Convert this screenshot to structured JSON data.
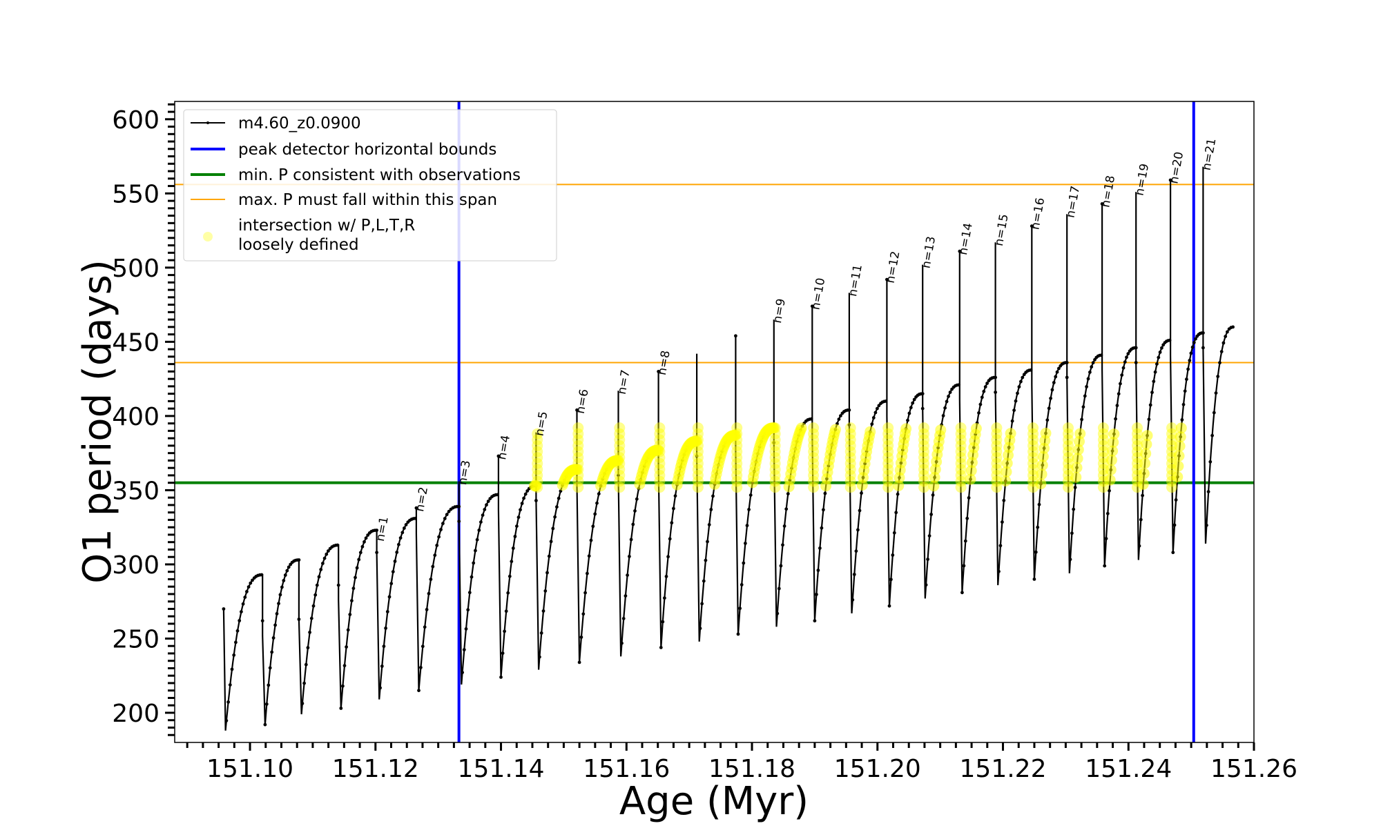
{
  "chart_data": {
    "type": "line",
    "title": "",
    "xlabel": "Age (Myr)",
    "ylabel": "O1 period (days)",
    "xlim": [
      151.088,
      151.26
    ],
    "ylim": [
      180,
      612
    ],
    "x_ticks": [
      151.1,
      151.12,
      151.14,
      151.16,
      151.18,
      151.2,
      151.22,
      151.24,
      151.26
    ],
    "x_tick_labels": [
      "151.10",
      "151.12",
      "151.14",
      "151.16",
      "151.18",
      "151.20",
      "151.22",
      "151.24",
      "151.26"
    ],
    "y_ticks": [
      200,
      250,
      300,
      350,
      400,
      450,
      500,
      550,
      600
    ],
    "y_tick_labels": [
      "200",
      "250",
      "300",
      "350",
      "400",
      "450",
      "500",
      "550",
      "600"
    ],
    "grid": false,
    "legend": {
      "placement": "upper-left",
      "entries": [
        {
          "key": "track",
          "label": "m4.60_z0.0900",
          "color": "#000000"
        },
        {
          "key": "bounds",
          "label": "peak detector horizontal bounds",
          "color": "#0000ff"
        },
        {
          "key": "minp",
          "label": "min. P consistent with observations",
          "color": "#008000"
        },
        {
          "key": "maxp",
          "label": "max. P must fall within this span",
          "color": "#ffa500"
        },
        {
          "key": "intersect",
          "label_line1": "intersection w/ P,L,T,R",
          "label_line2": "loosely defined",
          "color": "#ffff00"
        }
      ]
    },
    "reference_lines": {
      "peak_detector_bounds_x": [
        151.1333,
        151.2504
      ],
      "min_p_y": 355,
      "max_p_span_y": [
        436,
        556
      ]
    },
    "track": {
      "name": "m4.60_z0.0900",
      "start_age": 151.0958,
      "start_period": 270,
      "cycles": [
        {
          "age": 151.102,
          "trough": 188,
          "peak": 293,
          "spike": 262
        },
        {
          "age": 151.1078,
          "trough": 192,
          "peak": 303,
          "spike": 273
        },
        {
          "age": 151.1141,
          "trough": 199,
          "peak": 313,
          "spike": 286
        },
        {
          "age": 151.1202,
          "trough": 203,
          "peak": 323,
          "spike": 318
        },
        {
          "age": 151.1265,
          "trough": 209,
          "peak": 331,
          "spike": 338
        },
        {
          "age": 151.1333,
          "trough": 215,
          "peak": 339,
          "spike": 356
        },
        {
          "age": 151.1396,
          "trough": 219,
          "peak": 347,
          "spike": 373
        },
        {
          "age": 151.1456,
          "trough": 224,
          "peak": 353,
          "spike": 389
        },
        {
          "age": 151.1521,
          "trough": 229,
          "peak": 364,
          "spike": 404
        },
        {
          "age": 151.1587,
          "trough": 234,
          "peak": 370,
          "spike": 417
        },
        {
          "age": 151.1651,
          "trough": 238,
          "peak": 377,
          "spike": 430
        },
        {
          "age": 151.1712,
          "trough": 244,
          "peak": 383,
          "spike": 442
        },
        {
          "age": 151.1774,
          "trough": 248,
          "peak": 387,
          "spike": 454
        },
        {
          "age": 151.1835,
          "trough": 253,
          "peak": 392,
          "spike": 465
        },
        {
          "age": 151.1896,
          "trough": 258,
          "peak": 398,
          "spike": 474
        },
        {
          "age": 151.1955,
          "trough": 262,
          "peak": 404,
          "spike": 483
        },
        {
          "age": 151.2015,
          "trough": 267,
          "peak": 410,
          "spike": 492
        },
        {
          "age": 151.2072,
          "trough": 272,
          "peak": 415,
          "spike": 502
        },
        {
          "age": 151.2131,
          "trough": 277,
          "peak": 421,
          "spike": 511
        },
        {
          "age": 151.2188,
          "trough": 281,
          "peak": 426,
          "spike": 517
        },
        {
          "age": 151.2246,
          "trough": 286,
          "peak": 431,
          "spike": 528
        },
        {
          "age": 151.2302,
          "trough": 290,
          "peak": 436,
          "spike": 536
        },
        {
          "age": 151.2358,
          "trough": 294,
          "peak": 441,
          "spike": 543
        },
        {
          "age": 151.2412,
          "trough": 299,
          "peak": 446,
          "spike": 551
        },
        {
          "age": 151.2467,
          "trough": 303,
          "peak": 451,
          "spike": 559
        },
        {
          "age": 151.2519,
          "trough": 308,
          "peak": 456,
          "spike": 568
        }
      ],
      "end_age": 151.2568,
      "end_period": 460
    },
    "peak_labels": [
      {
        "label": "n=1",
        "age": 151.1202,
        "period": 318
      },
      {
        "label": "n=2",
        "age": 151.1265,
        "period": 338
      },
      {
        "label": "n=3",
        "age": 151.1333,
        "period": 356
      },
      {
        "label": "n=4",
        "age": 151.1396,
        "period": 373
      },
      {
        "label": "n=5",
        "age": 151.1456,
        "period": 389
      },
      {
        "label": "n=6",
        "age": 151.1521,
        "period": 404
      },
      {
        "label": "n=7",
        "age": 151.1587,
        "period": 417
      },
      {
        "label": "n=8",
        "age": 151.1651,
        "period": 430
      },
      {
        "label": "n=9",
        "age": 151.1835,
        "period": 465
      },
      {
        "label": "n=10",
        "age": 151.1896,
        "period": 474
      },
      {
        "label": "n=11",
        "age": 151.1955,
        "period": 483
      },
      {
        "label": "n=12",
        "age": 151.2015,
        "period": 492
      },
      {
        "label": "n=13",
        "age": 151.2072,
        "period": 502
      },
      {
        "label": "n=14",
        "age": 151.2131,
        "period": 511
      },
      {
        "label": "n=15",
        "age": 151.2188,
        "period": 517
      },
      {
        "label": "n=16",
        "age": 151.2246,
        "period": 528
      },
      {
        "label": "n=17",
        "age": 151.2302,
        "period": 536
      },
      {
        "label": "n=18",
        "age": 151.2358,
        "period": 543
      },
      {
        "label": "n=19",
        "age": 151.2412,
        "period": 551
      },
      {
        "label": "n=20",
        "age": 151.2467,
        "period": 559
      },
      {
        "label": "n=21",
        "age": 151.2519,
        "period": 568
      }
    ]
  }
}
